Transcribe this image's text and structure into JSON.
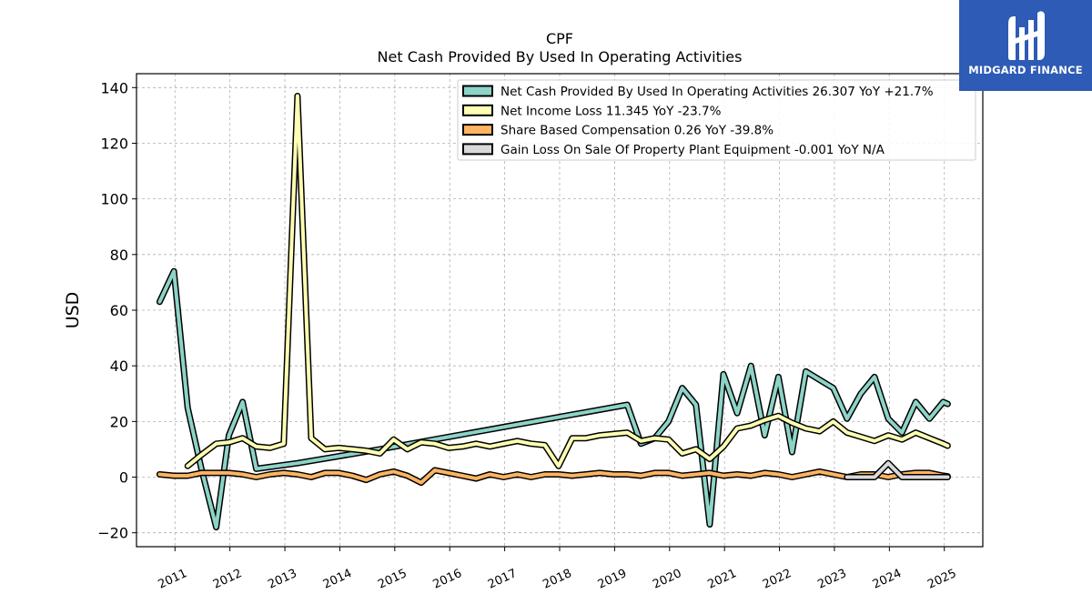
{
  "brand": {
    "name": "MIDGARD FINANCE",
    "logo_icon": "mf-monogram-icon",
    "color": "#2d5bb5"
  },
  "chart_data": {
    "type": "line",
    "title": "CPF",
    "subtitle": "Net Cash Provided By Used In Operating Activities",
    "xlabel": "",
    "ylabel": "USD",
    "ylim": [
      -25,
      145
    ],
    "yticks": [
      -20,
      0,
      20,
      40,
      60,
      80,
      100,
      120,
      140
    ],
    "ytick_labels": [
      "−20",
      "0",
      "20",
      "40",
      "60",
      "80",
      "100",
      "120",
      "140"
    ],
    "xlim": [
      2010.3,
      2025.7
    ],
    "xticks": [
      2011,
      2012,
      2013,
      2014,
      2015,
      2016,
      2017,
      2018,
      2019,
      2020,
      2021,
      2022,
      2023,
      2024,
      2025
    ],
    "xtick_labels": [
      "2011",
      "2012",
      "2013",
      "2014",
      "2015",
      "2016",
      "2017",
      "2018",
      "2019",
      "2020",
      "2021",
      "2022",
      "2023",
      "2024",
      "2025"
    ],
    "grid": true,
    "legend_position": "top-right",
    "series": [
      {
        "name": "Net Cash Provided By Used In Operating Activities  26.307 YoY +21.7%",
        "color": "#8dd3c7",
        "x": [
          2010.72,
          2010.98,
          2011.23,
          2011.48,
          2011.75,
          2011.98,
          2012.23,
          2012.48,
          2013.23,
          2014.73,
          2019.23,
          2019.48,
          2019.73,
          2019.98,
          2020.23,
          2020.48,
          2020.73,
          2020.98,
          2021.23,
          2021.48,
          2021.73,
          2021.98,
          2022.23,
          2022.48,
          2022.73,
          2022.98,
          2023.23,
          2023.48,
          2023.73,
          2023.98,
          2024.23,
          2024.48,
          2024.73,
          2024.98,
          2025.06
        ],
        "y": [
          63,
          74,
          25,
          3,
          -18,
          15,
          27,
          3,
          5,
          10,
          26,
          12,
          14,
          20,
          32,
          26,
          -17,
          37,
          23,
          40,
          15,
          36,
          9,
          38,
          35,
          32,
          21,
          30,
          36,
          21,
          16,
          27,
          21,
          27,
          26.3
        ]
      },
      {
        "name": "Net Income Loss  11.345 YoY -23.7%",
        "color": "#ffffb3",
        "x": [
          2011.23,
          2011.48,
          2011.75,
          2011.98,
          2012.23,
          2012.48,
          2012.73,
          2012.98,
          2013.23,
          2013.48,
          2013.73,
          2013.98,
          2014.23,
          2014.48,
          2014.73,
          2014.98,
          2015.23,
          2015.48,
          2015.73,
          2015.98,
          2016.23,
          2016.48,
          2016.73,
          2016.98,
          2017.23,
          2017.48,
          2017.73,
          2017.98,
          2018.23,
          2018.48,
          2018.73,
          2018.98,
          2019.23,
          2019.48,
          2019.73,
          2019.98,
          2020.23,
          2020.48,
          2020.73,
          2020.98,
          2021.23,
          2021.48,
          2021.73,
          2021.98,
          2022.23,
          2022.48,
          2022.73,
          2022.98,
          2023.23,
          2023.48,
          2023.73,
          2023.98,
          2024.23,
          2024.48,
          2024.73,
          2024.98,
          2025.06
        ],
        "y": [
          4,
          8,
          12,
          12.5,
          14,
          11,
          10.5,
          12,
          137,
          14,
          10,
          10.5,
          10,
          9.5,
          8.5,
          13.5,
          10,
          12.5,
          12,
          10.5,
          11,
          12,
          11,
          12,
          13,
          12,
          11.5,
          4,
          14,
          14,
          15,
          15.5,
          16,
          13,
          14,
          13.5,
          8.5,
          10,
          6.5,
          11,
          17.5,
          18.5,
          20.5,
          22,
          19.5,
          17.5,
          16.5,
          20,
          16,
          14.5,
          13,
          15,
          13.5,
          16,
          14,
          12,
          11.3
        ]
      },
      {
        "name": "Share Based Compensation  0.26 YoY -39.8%",
        "color": "#fdb462",
        "x": [
          2010.72,
          2010.98,
          2011.23,
          2011.48,
          2011.75,
          2011.98,
          2012.23,
          2012.48,
          2012.73,
          2012.98,
          2013.23,
          2013.48,
          2013.73,
          2013.98,
          2014.23,
          2014.48,
          2014.73,
          2014.98,
          2015.23,
          2015.48,
          2015.73,
          2015.98,
          2016.23,
          2016.48,
          2016.73,
          2016.98,
          2017.23,
          2017.48,
          2017.73,
          2017.98,
          2018.23,
          2018.48,
          2018.73,
          2018.98,
          2019.23,
          2019.48,
          2019.73,
          2019.98,
          2020.23,
          2020.48,
          2020.73,
          2020.98,
          2021.23,
          2021.48,
          2021.73,
          2021.98,
          2022.23,
          2022.48,
          2022.73,
          2022.98,
          2023.23,
          2023.48,
          2023.73,
          2023.98,
          2024.23,
          2024.48,
          2024.73,
          2024.98,
          2025.06
        ],
        "y": [
          1,
          0.5,
          0.5,
          1.5,
          1.5,
          1.5,
          1,
          0,
          1,
          1.5,
          1,
          0,
          1.5,
          1.5,
          0.5,
          -1,
          1,
          2,
          0.5,
          -2,
          2.5,
          1.5,
          0.5,
          -0.5,
          1,
          0,
          1,
          0,
          1,
          1,
          0.5,
          1,
          1.5,
          1,
          1,
          0.5,
          1.5,
          1.5,
          0.5,
          1,
          1.5,
          0.5,
          1,
          0.5,
          1.5,
          1,
          0,
          1,
          2,
          1,
          0,
          1,
          1,
          0,
          1,
          1.5,
          1.5,
          0.5,
          0.3
        ]
      },
      {
        "name": "Gain Loss On Sale Of Property Plant Equipment  -0.001 YoY N/A",
        "color": "#d9d9d9",
        "x": [
          2023.23,
          2023.48,
          2023.73,
          2023.98,
          2024.23,
          2024.48,
          2024.73,
          2024.98,
          2025.06
        ],
        "y": [
          0,
          0,
          0,
          5,
          0,
          0,
          0,
          0,
          0
        ]
      }
    ]
  }
}
